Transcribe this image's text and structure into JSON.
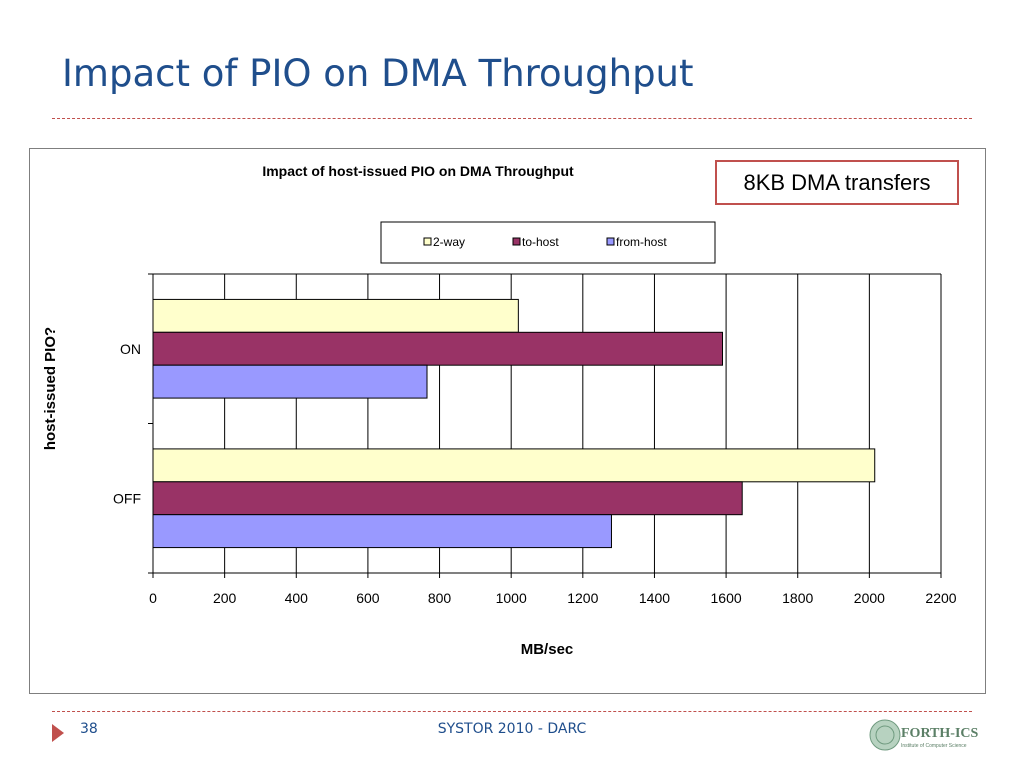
{
  "slide": {
    "title": "Impact of PIO on DMA Throughput",
    "note": "8KB DMA transfers",
    "page_number": "38",
    "footer": "SYSTOR 2010 - DARC",
    "logo_text": "FORTH-ICS",
    "logo_subtext": "Institute of Computer Science"
  },
  "colors": {
    "title": "#1f4e8c",
    "accent": "#c0504d",
    "series_2way": "#ffffcc",
    "series_to_host": "#993366",
    "series_from_host": "#9999ff"
  },
  "chart_data": {
    "type": "bar",
    "orientation": "horizontal",
    "title": "Impact of host-issued PIO on DMA Throughput",
    "xlabel": "MB/sec",
    "ylabel": "host-issued PIO?",
    "categories": [
      "ON",
      "OFF"
    ],
    "series": [
      {
        "name": "2-way",
        "values": [
          1020,
          2015
        ]
      },
      {
        "name": "to-host",
        "values": [
          1590,
          1645
        ]
      },
      {
        "name": "from-host",
        "values": [
          765,
          1280
        ]
      }
    ],
    "xlim": [
      0,
      2200
    ],
    "xticks": [
      0,
      200,
      400,
      600,
      800,
      1000,
      1200,
      1400,
      1600,
      1800,
      2000,
      2200
    ],
    "grid": "vertical",
    "legend": "top"
  }
}
